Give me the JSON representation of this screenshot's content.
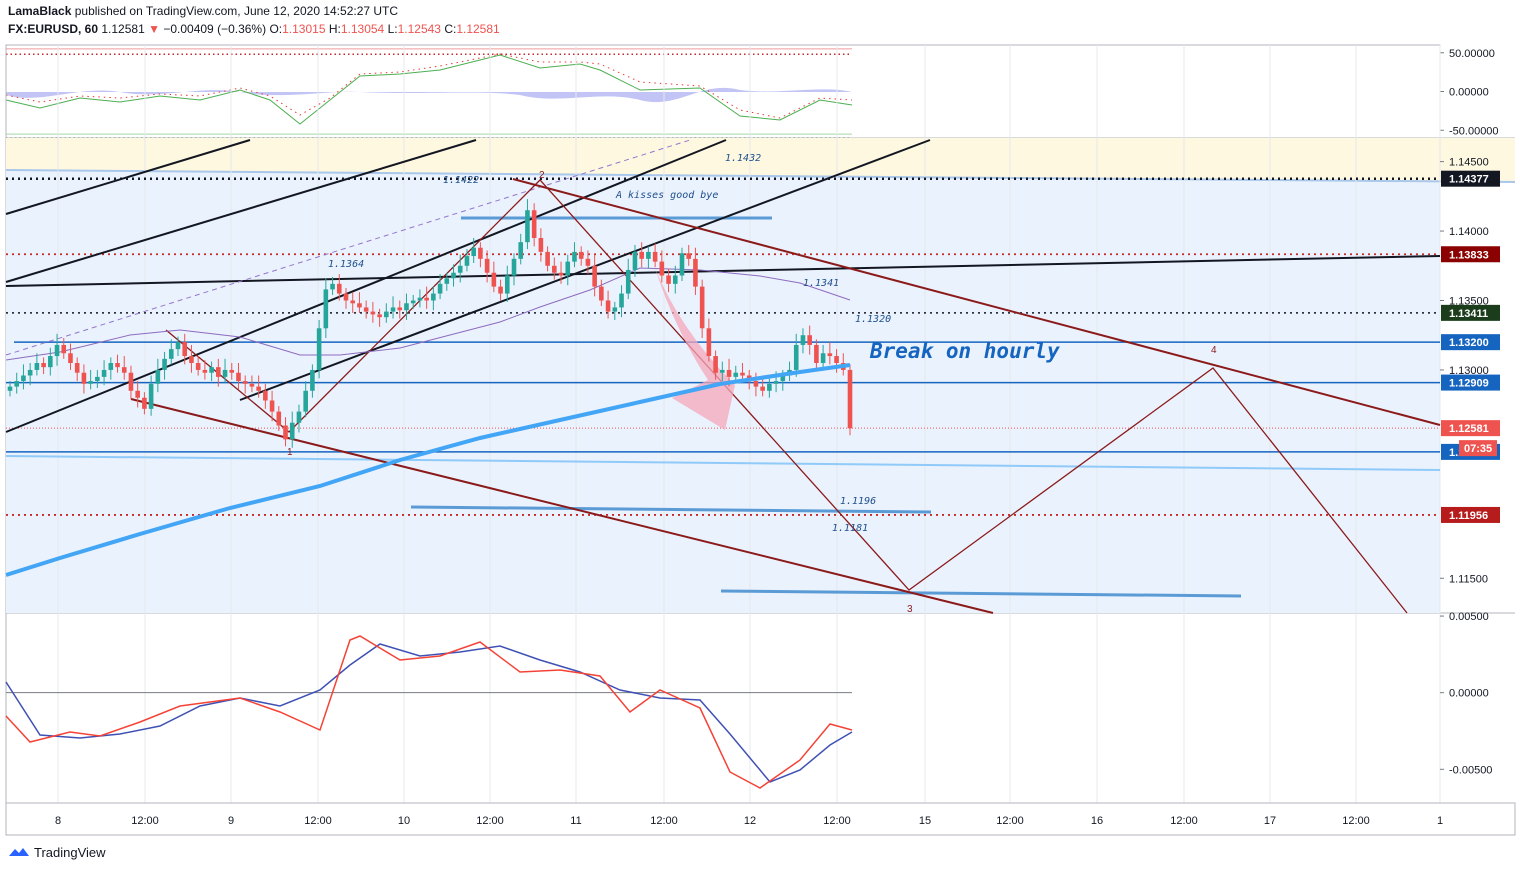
{
  "header": {
    "author": "LamaBlack",
    "published": "published on TradingView.com, June 12, 2020 14:52:27 UTC",
    "symbol": "FX:EURUSD, 60",
    "last": "1.12581",
    "arrow": "▼",
    "change": "−0.00409 (−0.36%)",
    "o_label": "O:",
    "o_value": "1.13015",
    "h_label": "H:",
    "h_value": "1.13054",
    "l_label": "L:",
    "l_value": "1.12543",
    "c_label": "C:",
    "c_value": "1.12581"
  },
  "footer": {
    "brand": "TradingView",
    "logo_icon": "tradingview-logo-icon"
  },
  "colors": {
    "up": "#26a69a",
    "down": "#ef5350",
    "blue": "#2962ff",
    "trend": "#8b1a1a",
    "ma": "#42a5f5",
    "lightblue": "#90caf9",
    "bg_band": "#eaf2fd",
    "yellow_band": "#fff8e1"
  },
  "chart_data": [
    {
      "type": "line",
      "panel": "oscillator-top",
      "y_ticks": [
        "50.00000",
        "0.00000",
        "-50.00000"
      ],
      "ylim": [
        -60,
        60
      ],
      "series": []
    },
    {
      "type": "candlestick",
      "panel": "price",
      "ylim": [
        1.1125,
        1.1467
      ],
      "y_ticks": [
        {
          "value": 1.145,
          "label": "1.14500"
        },
        {
          "value": 1.14,
          "label": "1.14000"
        },
        {
          "value": 1.135,
          "label": "1.13500"
        },
        {
          "value": 1.13,
          "label": "1.13000"
        },
        {
          "value": 1.115,
          "label": "1.11500"
        }
      ],
      "price_badges": [
        {
          "value": 1.14377,
          "label": "1.14377",
          "color": "#131722"
        },
        {
          "value": 1.13833,
          "label": "1.13833",
          "color": "#8b0000"
        },
        {
          "value": 1.13411,
          "label": "1.13411",
          "color": "#1b3d1b"
        },
        {
          "value": 1.132,
          "label": "1.13200",
          "color": "#1565c0"
        },
        {
          "value": 1.12909,
          "label": "1.12909",
          "color": "#1565c0"
        },
        {
          "value": 1.12581,
          "label": "1.12581",
          "color": "#ef5350"
        },
        {
          "value": 1.1241,
          "label": "1.12410",
          "color": "#1565c0"
        },
        {
          "value": 1.11956,
          "label": "1.11956",
          "color": "#b71c1c"
        }
      ],
      "countdown": "07:35",
      "annotations": [
        {
          "text": "1.1432"
        },
        {
          "text": "1.1422"
        },
        {
          "text": "A kisses good bye"
        },
        {
          "text": "1.1364"
        },
        {
          "text": "1.1341"
        },
        {
          "text": "1.1320"
        },
        {
          "text": "Break on hourly"
        },
        {
          "text": "1.1196"
        },
        {
          "text": "1.1181"
        }
      ],
      "wave_labels": [
        "1",
        "2",
        "3",
        "4"
      ],
      "candles_close": [
        1.1288,
        1.1292,
        1.1296,
        1.13,
        1.1305,
        1.1302,
        1.131,
        1.1318,
        1.1312,
        1.1305,
        1.1298,
        1.129,
        1.1292,
        1.1295,
        1.13,
        1.1305,
        1.1302,
        1.1298,
        1.1285,
        1.128,
        1.1272,
        1.129,
        1.13,
        1.1308,
        1.1315,
        1.132,
        1.131,
        1.1305,
        1.13,
        1.1298,
        1.1302,
        1.1295,
        1.13,
        1.1298,
        1.1292,
        1.129,
        1.1288,
        1.1285,
        1.1278,
        1.127,
        1.126,
        1.125,
        1.1262,
        1.127,
        1.1285,
        1.13,
        1.133,
        1.1358,
        1.1362,
        1.1355,
        1.135,
        1.1348,
        1.1345,
        1.1342,
        1.134,
        1.1338,
        1.1342,
        1.1345,
        1.1343,
        1.1348,
        1.135,
        1.1352,
        1.135,
        1.1355,
        1.1362,
        1.1366,
        1.137,
        1.1375,
        1.1382,
        1.1388,
        1.138,
        1.137,
        1.136,
        1.1355,
        1.1368,
        1.138,
        1.1392,
        1.1415,
        1.1395,
        1.1385,
        1.1375,
        1.137,
        1.1368,
        1.1378,
        1.1385,
        1.138,
        1.1375,
        1.136,
        1.135,
        1.1342,
        1.1345,
        1.1355,
        1.1372,
        1.1385,
        1.138,
        1.1385,
        1.1378,
        1.1368,
        1.1362,
        1.1368,
        1.1384,
        1.138,
        1.136,
        1.133,
        1.131,
        1.1298,
        1.13,
        1.1295,
        1.1298,
        1.1296,
        1.1292,
        1.1288,
        1.1285,
        1.129,
        1.1292,
        1.1296,
        1.13,
        1.1318,
        1.1325,
        1.1318,
        1.1305,
        1.1312,
        1.131,
        1.1305,
        1.13,
        1.1258
      ]
    },
    {
      "type": "line",
      "panel": "macd",
      "y_ticks": [
        "0.00500",
        "0.00000",
        "-0.00500"
      ],
      "ylim": [
        -0.0072,
        0.0052
      ],
      "series": []
    },
    {
      "type": "axis",
      "panel": "time",
      "x_ticks": [
        "8",
        "12:00",
        "9",
        "12:00",
        "10",
        "12:00",
        "11",
        "12:00",
        "12",
        "12:00",
        "15",
        "12:00",
        "16",
        "12:00",
        "17",
        "12:00",
        "1"
      ]
    }
  ]
}
